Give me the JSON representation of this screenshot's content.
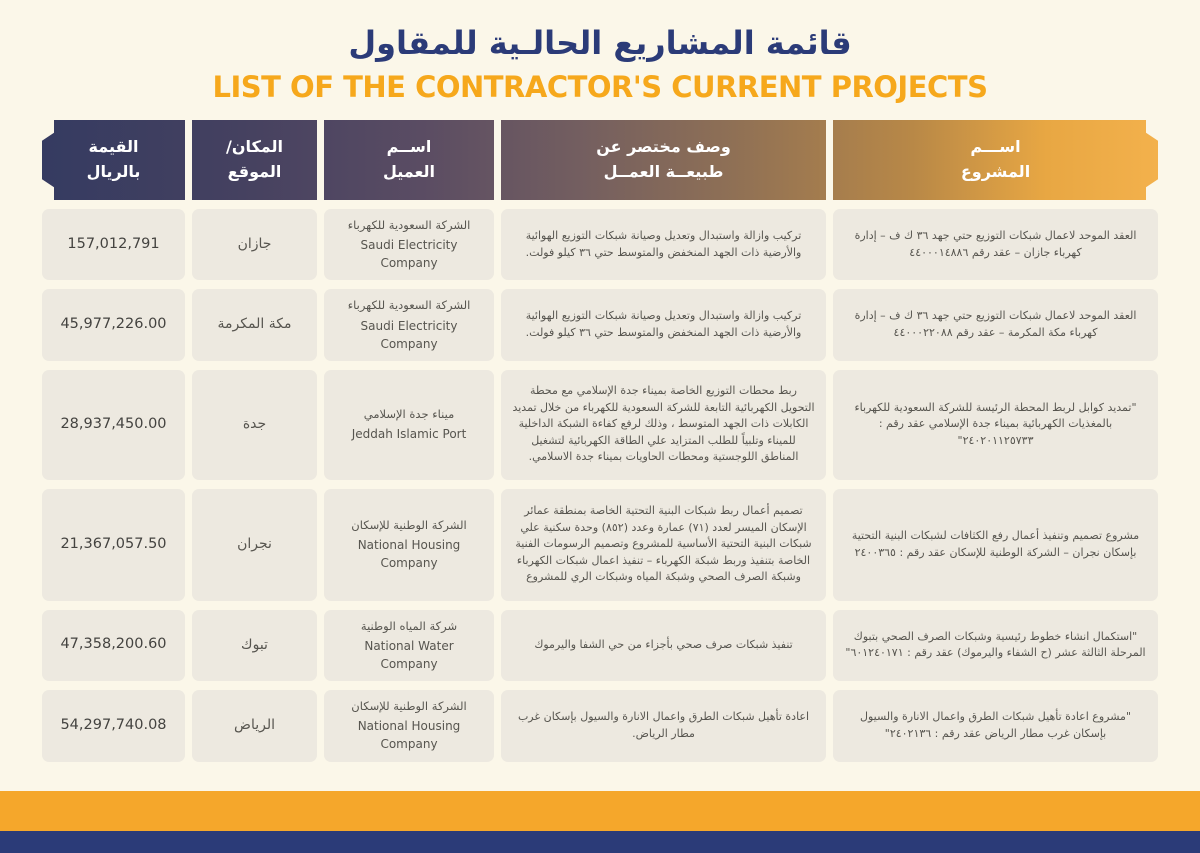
{
  "page": {
    "title_ar": "قائمة المشاريع الحالـية للمقاول",
    "title_en": "LIST OF THE CONTRACTOR'S CURRENT PROJECTS"
  },
  "colors": {
    "background": "#FBF7E9",
    "title_navy": "#2B3B78",
    "title_gold": "#F6A81C",
    "header_gradient_start": "#353B61",
    "header_gradient_end": "#F3B14C",
    "cell_background": "#EDE9E0",
    "footer_gold": "#F5A72B",
    "footer_navy": "#2B3B78"
  },
  "table": {
    "headers": {
      "project": {
        "l1": "اســـم",
        "l2": "المشروع"
      },
      "description": {
        "l1": "وصف مختصر عن",
        "l2": "طبيعــة العمــل"
      },
      "client": {
        "l1": "اســم",
        "l2": "العميل"
      },
      "location": {
        "l1": "المكان/",
        "l2": "الموقع"
      },
      "value": {
        "l1": "القيمة",
        "l2": "بالريال"
      }
    },
    "rows": [
      {
        "project": "العقد الموحد لاعمال شبكات التوزيع حتي جهد ٣٦ ك ف – إدارة كهرباء جازان – عقد رقم ٤٤٠٠٠١٤٨٨٦",
        "description": "تركيب وازالة واستبدال وتعديل وصيانة شبكات التوزيع الهوائية والأرضية ذات الجهد المنخفض والمتوسط حتي ٣٦ كيلو فولت.",
        "client_ar": "الشركة السعودية للكهرباء",
        "client_en": "Saudi Electricity Company",
        "location": "جازان",
        "value": "157,012,791"
      },
      {
        "project": "العقد الموحد لاعمال شبكات التوزيع حتي جهد ٣٦ ك ف – إدارة كهرباء مكة المكرمة – عقد رقم ٤٤٠٠٠٢٢٠٨٨",
        "description": "تركيب وازالة واستبدال وتعديل وصيانة شبكات التوزيع الهوائية والأرضية ذات الجهد المنخفض والمتوسط حتي ٣٦ كيلو فولت.",
        "client_ar": "الشركة السعودية للكهرباء",
        "client_en": "Saudi Electricity Company",
        "location": "مكة المكرمة",
        "value": "45,977,226.00"
      },
      {
        "project": "\"تمديد كوابل لربط المحطة الرئيسة للشركة السعودية للكهرباء بالمغذيات الكهربائية بميناء جدة الإسلامي عقد رقم : ٢٤٠٢٠١١٢٥٧٣٣\"",
        "description": "ربط محطات التوزيع الخاصة بميناء جدة الإسلامي مع محطة التحويل الكهربائية التابعة للشركة السعودية للكهرباء من خلال تمديد الكابلات ذات الجهد المتوسط ، وذلك لرفع كفاءة الشبكة الداخلية للميناء وتلبياً للطلب المتزايد علي الطاقة الكهربائية لتشغيل المناطق اللوجستية ومحطات الحاويات بميناء جدة الاسلامي.",
        "client_ar": "ميناء جدة الإسلامي",
        "client_en": "Jeddah Islamic Port",
        "location": "جدة",
        "value": "28,937,450.00"
      },
      {
        "project": "مشروع تصميم وتنفيذ أعمال رفع الكثافات لشبكات البنية التحتية بإسكان نجران – الشركة الوطنية للإسكان عقد رقم : ٢٤٠٠٣٦٥",
        "description": "تصميم أعمال ربط شبكات البنية التحتية الخاصة بمنطقة عمائر الإسكان الميسر لعدد (٧١) عمارة وعدد (٨٥٢) وحدة سكنية علي شبكات البنية التحتية الأساسية للمشروع وتصميم الرسومات الفنية الخاصة بتنفيذ وربط شبكة الكهرباء – تنفيذ اعمال شبكات الكهرباء وشبكة الصرف الصحي وشبكة المياه وشبكات الري للمشروع",
        "client_ar": "الشركة الوطنية للإسكان",
        "client_en": "National Housing Company",
        "location": "نجران",
        "value": "21,367,057.50"
      },
      {
        "project": "\"استكمال انشاء خطوط رئيسية وشبكات الصرف الصحي بتبوك المرحلة الثالثة عشر (ح الشفاء واليرموك) عقد رقم : ٦٠١٢٤٠١٧١\"",
        "description": "تنفيذ شبكات صرف صحي بأجزاء من حي الشفا واليرموك",
        "client_ar": "شركة المياه الوطنية",
        "client_en": "National Water Company",
        "location": "تبوك",
        "value": "47,358,200.60"
      },
      {
        "project": "\"مشروع اعادة تأهيل شبكات الطرق واعمال الانارة والسيول بإسكان غرب مطار الرياض عقد رقم : ٢٤٠٢١٣٦\"",
        "description": "اعادة تأهيل شبكات الطرق واعمال الانارة والسيول بإسكان غرب مطار الرياض.",
        "client_ar": "الشركة الوطنية للإسكان",
        "client_en": "National Housing Company",
        "location": "الرياض",
        "value": "54,297,740.08"
      }
    ]
  }
}
